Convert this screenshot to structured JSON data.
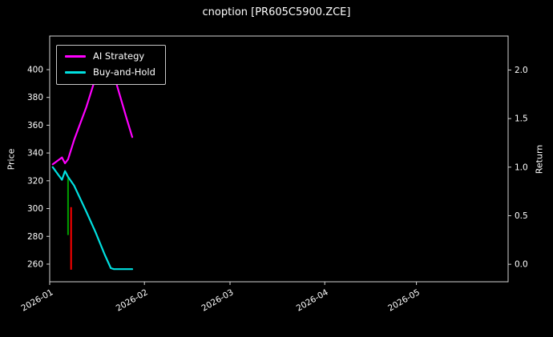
{
  "chart_data": {
    "type": "line",
    "title": "cnoption [PR605C5900.ZCE]",
    "ylabel_left": "Price",
    "ylabel_right": "Return",
    "background_color": "#000000",
    "grid": false,
    "x_start": "2026-01-01",
    "x_end": "2026-05-31",
    "x_ticks": [
      {
        "date": "2026-01-01",
        "label": "2026-01"
      },
      {
        "date": "2026-02-01",
        "label": "2026-02"
      },
      {
        "date": "2026-03-01",
        "label": "2026-03"
      },
      {
        "date": "2026-04-01",
        "label": "2026-04"
      },
      {
        "date": "2026-05-01",
        "label": "2026-05"
      }
    ],
    "left_axis": {
      "min": 247.3,
      "max": 424.2,
      "ticks": [
        {
          "v": 260,
          "label": "260"
        },
        {
          "v": 280,
          "label": "280"
        },
        {
          "v": 300,
          "label": "300"
        },
        {
          "v": 320,
          "label": "320"
        },
        {
          "v": 340,
          "label": "340"
        },
        {
          "v": 360,
          "label": "360"
        },
        {
          "v": 380,
          "label": "380"
        },
        {
          "v": 400,
          "label": "400"
        }
      ]
    },
    "right_axis": {
      "min": -0.18,
      "max": 2.35,
      "ticks": [
        {
          "v": 0.0,
          "label": "0.0"
        },
        {
          "v": 0.5,
          "label": "0.5"
        },
        {
          "v": 1.0,
          "label": "1.0"
        },
        {
          "v": 1.5,
          "label": "1.5"
        },
        {
          "v": 2.0,
          "label": "2.0"
        }
      ]
    },
    "series": [
      {
        "name": "AI Strategy",
        "color": "#ff00ff",
        "axis": "right",
        "points": [
          [
            "2026-01-02",
            1.03
          ],
          [
            "2026-01-05",
            1.1
          ],
          [
            "2026-01-06",
            1.04
          ],
          [
            "2026-01-07",
            1.08
          ],
          [
            "2026-01-09",
            1.28
          ],
          [
            "2026-01-13",
            1.62
          ],
          [
            "2026-01-16",
            1.92
          ],
          [
            "2026-01-19",
            2.1
          ],
          [
            "2026-01-20",
            2.13
          ],
          [
            "2026-01-22",
            1.95
          ],
          [
            "2026-01-26",
            1.52
          ],
          [
            "2026-01-28",
            1.31
          ]
        ]
      },
      {
        "name": "Buy-and-Hold",
        "color": "#00e0e0",
        "axis": "right",
        "points": [
          [
            "2026-01-02",
            1.0
          ],
          [
            "2026-01-05",
            0.87
          ],
          [
            "2026-01-06",
            0.96
          ],
          [
            "2026-01-07",
            0.9
          ],
          [
            "2026-01-09",
            0.81
          ],
          [
            "2026-01-13",
            0.54
          ],
          [
            "2026-01-16",
            0.33
          ],
          [
            "2026-01-19",
            0.1
          ],
          [
            "2026-01-21",
            -0.04
          ],
          [
            "2026-01-22",
            -0.05
          ],
          [
            "2026-01-28",
            -0.05
          ]
        ]
      }
    ],
    "candles": [
      {
        "date": "2026-01-07",
        "high": 322,
        "low": 281,
        "color": "#00a000",
        "direction": "up"
      },
      {
        "date": "2026-01-08",
        "high": 301,
        "low": 256,
        "color": "#ff0000",
        "direction": "down"
      }
    ],
    "legend": {
      "items": [
        {
          "label": "AI Strategy",
          "color": "#ff00ff"
        },
        {
          "label": "Buy-and-Hold",
          "color": "#00e0e0"
        }
      ]
    }
  }
}
